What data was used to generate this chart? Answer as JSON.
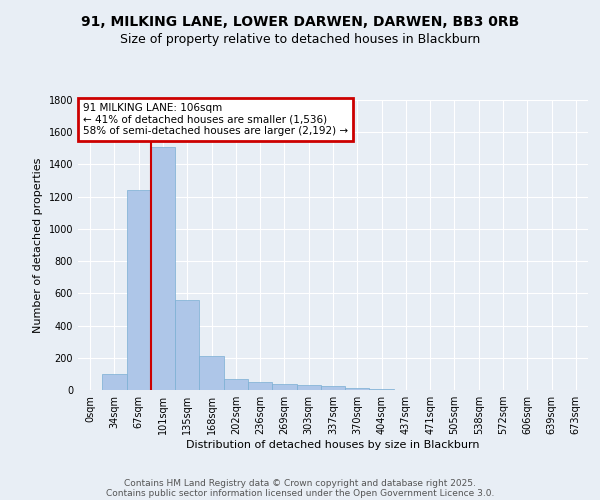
{
  "title_line1": "91, MILKING LANE, LOWER DARWEN, DARWEN, BB3 0RB",
  "title_line2": "Size of property relative to detached houses in Blackburn",
  "xlabel": "Distribution of detached houses by size in Blackburn",
  "ylabel": "Number of detached properties",
  "categories": [
    "0sqm",
    "34sqm",
    "67sqm",
    "101sqm",
    "135sqm",
    "168sqm",
    "202sqm",
    "236sqm",
    "269sqm",
    "303sqm",
    "337sqm",
    "370sqm",
    "404sqm",
    "437sqm",
    "471sqm",
    "505sqm",
    "538sqm",
    "572sqm",
    "606sqm",
    "639sqm",
    "673sqm"
  ],
  "values": [
    0,
    100,
    1240,
    1510,
    560,
    210,
    70,
    50,
    40,
    30,
    25,
    10,
    5,
    2,
    0,
    0,
    0,
    0,
    0,
    0,
    0
  ],
  "bar_color": "#aec6e8",
  "bar_edge_color": "#7aafd4",
  "vline_color": "#cc0000",
  "annotation_text": "91 MILKING LANE: 106sqm\n← 41% of detached houses are smaller (1,536)\n58% of semi-detached houses are larger (2,192) →",
  "annotation_box_color": "#cc0000",
  "background_color": "#e8eef5",
  "ylim": [
    0,
    1800
  ],
  "yticks": [
    0,
    200,
    400,
    600,
    800,
    1000,
    1200,
    1400,
    1600,
    1800
  ],
  "footer_line1": "Contains HM Land Registry data © Crown copyright and database right 2025.",
  "footer_line2": "Contains public sector information licensed under the Open Government Licence 3.0.",
  "title_fontsize": 10,
  "subtitle_fontsize": 9,
  "axis_label_fontsize": 8,
  "tick_fontsize": 7,
  "annotation_fontsize": 7.5,
  "footer_fontsize": 6.5
}
